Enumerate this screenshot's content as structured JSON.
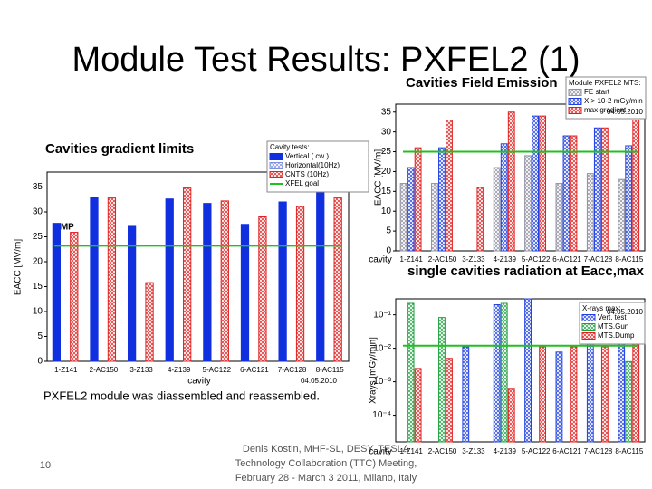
{
  "slide": {
    "title": "Module Test Results: PXFEL2 (1)",
    "note": "PXFEL2 module was diassembled and reassembled.",
    "page_number": "10",
    "footer": [
      "Denis Kostin, MHF-SL, DESY. TESLA",
      "Technology Collaboration (TTC) Meeting,",
      "February 28 - March 3 2011, Milano, Italy"
    ]
  },
  "chart_data": [
    {
      "type": "bar",
      "title": "Cavities gradient limits",
      "y_label": "EACC [MV/m]",
      "x_label": "cavity",
      "categories": [
        "1-Z141",
        "2-AC150",
        "3-Z133",
        "4-Z139",
        "5-AC122",
        "6-AC121",
        "7-AC128",
        "8-AC115"
      ],
      "legend_title": "Cavity tests:",
      "series": [
        {
          "name": "Vertical   ( cw )",
          "color": "#1030e0",
          "hatch": false,
          "values": [
            27.7,
            33,
            27.1,
            32.6,
            31.7,
            27.5,
            32,
            36.6
          ]
        },
        {
          "name": "Horizontal(10Hz)",
          "color": "#8090e0",
          "hatch": true,
          "values": [
            null,
            null,
            null,
            null,
            null,
            null,
            null,
            null
          ]
        },
        {
          "name": "CNTS          (10Hz)",
          "color": "#e02020",
          "hatch": true,
          "values": [
            25.9,
            32.8,
            15.8,
            34.8,
            32.2,
            29,
            31.1,
            32.8
          ]
        }
      ],
      "goal": {
        "label": "XFEL goal",
        "value": 23.2,
        "color": "#20c020"
      },
      "annotation": "MP",
      "date": "04.05.2010",
      "ylim": [
        0,
        38
      ],
      "yticks": [
        0,
        5,
        10,
        15,
        20,
        25,
        30,
        35
      ],
      "log": false
    },
    {
      "type": "bar",
      "title": "Cavities Field Emission",
      "y_label": "EACC [MV/m]",
      "x_label": "cavity",
      "categories": [
        "1-Z141",
        "2-AC150",
        "3-Z133",
        "4-Z139",
        "5-AC122",
        "6-AC121",
        "7-AC128",
        "8-AC115"
      ],
      "legend_title": "Module PXFEL2 MTS:",
      "series": [
        {
          "name": "FE start",
          "color": "#9090a0",
          "hatch": true,
          "values": [
            17,
            17,
            null,
            21,
            24,
            17,
            19.5,
            18
          ]
        },
        {
          "name": "X > 10-2 mGy/min",
          "color": "#2040e0",
          "hatch": true,
          "values": [
            21,
            26,
            null,
            27,
            34,
            29,
            31,
            26.5
          ]
        },
        {
          "name": "max gradient",
          "color": "#e02020",
          "hatch": true,
          "values": [
            26,
            33,
            16,
            35,
            34,
            29,
            31,
            33
          ]
        }
      ],
      "goal": {
        "value": 25,
        "color": "#20c020"
      },
      "date": "04.05.2010",
      "ylim": [
        0,
        37
      ],
      "yticks": [
        0,
        5,
        10,
        15,
        20,
        25,
        30,
        35
      ],
      "log": false
    },
    {
      "type": "bar",
      "title": "single cavities radiation at Eacc,max",
      "y_label": "Xrays [mGy/min]",
      "x_label": "cavity",
      "categories": [
        "1-Z141",
        "2-AC150",
        "3-Z133",
        "4-Z139",
        "5-AC122",
        "6-AC121",
        "7-AC128",
        "8-AC115"
      ],
      "legend_title": "X-rays max:",
      "series": [
        {
          "name": "Vert. test",
          "color": "#2040e0",
          "hatch": true,
          "values": [
            null,
            null,
            0.011,
            0.2,
            0.3,
            0.0077,
            0.023,
            0.023
          ]
        },
        {
          "name": "MTS.Gun",
          "color": "#20a040",
          "hatch": true,
          "values": [
            0.22,
            0.083,
            null,
            0.22,
            null,
            null,
            null,
            0.004
          ]
        },
        {
          "name": "MTS.Dump",
          "color": "#e02020",
          "hatch": true,
          "values": [
            0.0025,
            0.005,
            null,
            0.0006,
            0.011,
            0.011,
            0.011,
            0.19
          ]
        }
      ],
      "goal": {
        "value": 0.012,
        "color": "#20c020"
      },
      "date": "04.05.2010",
      "ylim": [
        1.6e-05,
        0.3
      ],
      "yticks": [
        {
          "value": 0.0001,
          "label": "10⁻⁴"
        },
        {
          "value": 0.001,
          "label": "10⁻³"
        },
        {
          "value": 0.01,
          "label": "10⁻²"
        },
        {
          "value": 0.1,
          "label": "10⁻¹"
        }
      ],
      "log": true
    }
  ]
}
